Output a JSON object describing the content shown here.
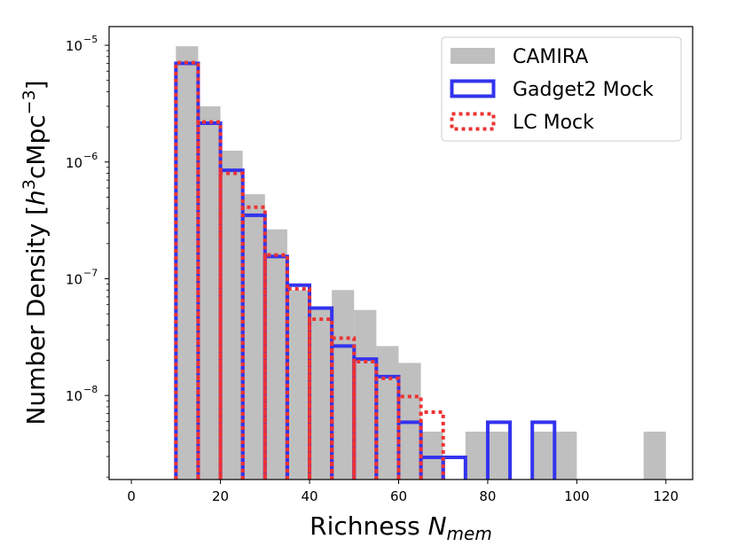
{
  "chart_data": {
    "type": "histogram",
    "title": "",
    "xlabel": "Richness",
    "xlabel_italic": "N",
    "xlabel_sub": "mem",
    "ylabel_prefix": "Number Density [",
    "ylabel_h": "h",
    "ylabel_h_exp": "3",
    "ylabel_mid": "cMpc",
    "ylabel_mid_exp": "−3",
    "ylabel_suffix": "]",
    "xlim": [
      -5,
      126
    ],
    "ylim_log10": [
      -8.72,
      -4.84
    ],
    "yscale": "log",
    "x_ticks": [
      0,
      20,
      40,
      60,
      80,
      100,
      120
    ],
    "x_tick_labels": [
      "0",
      "20",
      "40",
      "60",
      "80",
      "100",
      "120"
    ],
    "y_ticks_log10": [
      -8,
      -7,
      -6,
      -5
    ],
    "y_tick_base": "10",
    "y_tick_exponents": [
      "−8",
      "−7",
      "−6",
      "−5"
    ],
    "legend_position": "upper right",
    "series": [
      {
        "name": "CAMIRA",
        "style": "filled",
        "color": "#bfbfbf",
        "bins": [
          {
            "x0": 10,
            "x1": 15,
            "value": 9.8e-06
          },
          {
            "x0": 15,
            "x1": 20,
            "value": 3e-06
          },
          {
            "x0": 20,
            "x1": 25,
            "value": 1.25e-06
          },
          {
            "x0": 25,
            "x1": 30,
            "value": 5.3e-07
          },
          {
            "x0": 30,
            "x1": 35,
            "value": 2.65e-07
          },
          {
            "x0": 35,
            "x1": 40,
            "value": 8e-08
          },
          {
            "x0": 40,
            "x1": 45,
            "value": 5.4e-08
          },
          {
            "x0": 45,
            "x1": 50,
            "value": 8e-08
          },
          {
            "x0": 50,
            "x1": 55,
            "value": 5.4e-08
          },
          {
            "x0": 55,
            "x1": 60,
            "value": 2.65e-08
          },
          {
            "x0": 60,
            "x1": 65,
            "value": 1.9e-08
          },
          {
            "x0": 65,
            "x1": 70,
            "value": 4.9e-09
          },
          {
            "x0": 75,
            "x1": 80,
            "value": 4.9e-09
          },
          {
            "x0": 80,
            "x1": 85,
            "value": 4.9e-09
          },
          {
            "x0": 90,
            "x1": 95,
            "value": 4.9e-09
          },
          {
            "x0": 95,
            "x1": 100,
            "value": 4.9e-09
          },
          {
            "x0": 115,
            "x1": 120,
            "value": 4.9e-09
          }
        ]
      },
      {
        "name": "Gadget2 Mock",
        "style": "step-solid",
        "color": "#3333ee",
        "bins": [
          {
            "x0": 10,
            "x1": 15,
            "value": 7e-06
          },
          {
            "x0": 15,
            "x1": 20,
            "value": 2.15e-06
          },
          {
            "x0": 20,
            "x1": 25,
            "value": 8.5e-07
          },
          {
            "x0": 25,
            "x1": 30,
            "value": 3.5e-07
          },
          {
            "x0": 30,
            "x1": 35,
            "value": 1.55e-07
          },
          {
            "x0": 35,
            "x1": 40,
            "value": 8.8e-08
          },
          {
            "x0": 40,
            "x1": 45,
            "value": 5.6e-08
          },
          {
            "x0": 45,
            "x1": 50,
            "value": 2.65e-08
          },
          {
            "x0": 50,
            "x1": 55,
            "value": 2.05e-08
          },
          {
            "x0": 55,
            "x1": 60,
            "value": 1.45e-08
          },
          {
            "x0": 60,
            "x1": 65,
            "value": 5.9e-09
          },
          {
            "x0": 65,
            "x1": 70,
            "value": 2.95e-09
          },
          {
            "x0": 70,
            "x1": 75,
            "value": 2.95e-09
          },
          {
            "x0": 80,
            "x1": 85,
            "value": 5.9e-09
          },
          {
            "x0": 90,
            "x1": 95,
            "value": 5.9e-09
          }
        ]
      },
      {
        "name": "LC Mock",
        "style": "step-dotted",
        "color": "#ee3333",
        "bins": [
          {
            "x0": 10,
            "x1": 15,
            "value": 7.1e-06
          },
          {
            "x0": 15,
            "x1": 20,
            "value": 2.2e-06
          },
          {
            "x0": 20,
            "x1": 25,
            "value": 8e-07
          },
          {
            "x0": 25,
            "x1": 30,
            "value": 4.1e-07
          },
          {
            "x0": 30,
            "x1": 35,
            "value": 1.6e-07
          },
          {
            "x0": 35,
            "x1": 40,
            "value": 8.2e-08
          },
          {
            "x0": 40,
            "x1": 45,
            "value": 4.5e-08
          },
          {
            "x0": 45,
            "x1": 50,
            "value": 3.1e-08
          },
          {
            "x0": 50,
            "x1": 55,
            "value": 1.95e-08
          },
          {
            "x0": 55,
            "x1": 60,
            "value": 1.4e-08
          },
          {
            "x0": 60,
            "x1": 65,
            "value": 9.8e-09
          },
          {
            "x0": 65,
            "x1": 70,
            "value": 7.2e-09
          }
        ]
      }
    ]
  }
}
